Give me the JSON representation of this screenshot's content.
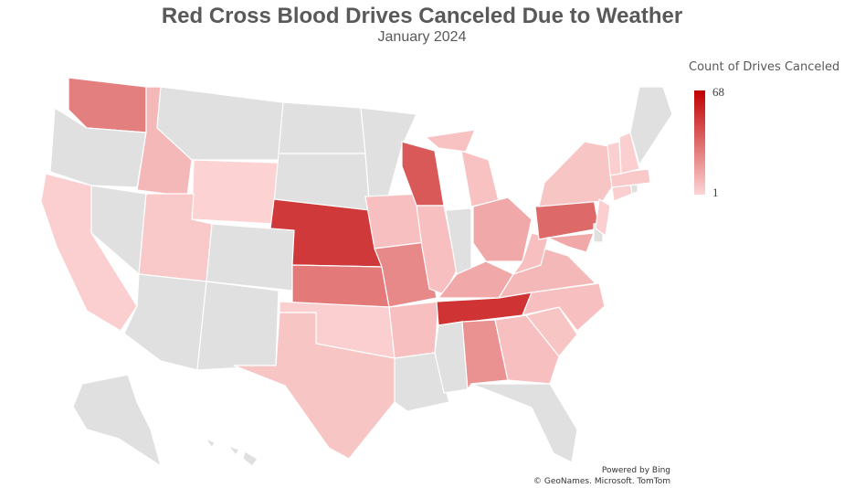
{
  "title": "Red Cross Blood Drives Canceled Due to Weather",
  "subtitle": "January 2024",
  "legend": {
    "title": "Count of Drives Canceled",
    "max": "68",
    "min": "1",
    "max_value": 68,
    "min_value": 1,
    "color_max": "#c00000",
    "color_min": "#fdd5d5",
    "no_data_color": "#e0e0e0"
  },
  "attribution": {
    "line1": "Powered by Bing",
    "line2": "© GeoNames. Microsoft. TomTom"
  },
  "chart_data": {
    "type": "choropleth",
    "title": "Red Cross Blood Drives Canceled Due to Weather",
    "subtitle": "January 2024",
    "measure": "Count of Drives Canceled",
    "range": [
      1,
      68
    ],
    "states": [
      {
        "state": "WA",
        "value": 28
      },
      {
        "state": "OR",
        "value": null
      },
      {
        "state": "CA",
        "value": 3
      },
      {
        "state": "NV",
        "value": null
      },
      {
        "state": "ID",
        "value": 10
      },
      {
        "state": "MT",
        "value": null
      },
      {
        "state": "WY",
        "value": 2
      },
      {
        "state": "UT",
        "value": 5
      },
      {
        "state": "CO",
        "value": null
      },
      {
        "state": "AZ",
        "value": null
      },
      {
        "state": "NM",
        "value": null
      },
      {
        "state": "ND",
        "value": null
      },
      {
        "state": "SD",
        "value": null
      },
      {
        "state": "NE",
        "value": 50
      },
      {
        "state": "KS",
        "value": 30
      },
      {
        "state": "OK",
        "value": 3
      },
      {
        "state": "TX",
        "value": 6
      },
      {
        "state": "MN",
        "value": null
      },
      {
        "state": "IA",
        "value": 8
      },
      {
        "state": "MO",
        "value": 25
      },
      {
        "state": "AR",
        "value": 8
      },
      {
        "state": "LA",
        "value": null
      },
      {
        "state": "WI",
        "value": 40
      },
      {
        "state": "IL",
        "value": 8
      },
      {
        "state": "MI",
        "value": 7
      },
      {
        "state": "IN",
        "value": null
      },
      {
        "state": "OH",
        "value": 15
      },
      {
        "state": "KY",
        "value": 15
      },
      {
        "state": "TN",
        "value": 52
      },
      {
        "state": "MS",
        "value": null
      },
      {
        "state": "AL",
        "value": 22
      },
      {
        "state": "GA",
        "value": 8
      },
      {
        "state": "FL",
        "value": null
      },
      {
        "state": "SC",
        "value": 6
      },
      {
        "state": "NC",
        "value": 8
      },
      {
        "state": "VA",
        "value": 10
      },
      {
        "state": "WV",
        "value": 8
      },
      {
        "state": "PA",
        "value": 35
      },
      {
        "state": "NY",
        "value": 6
      },
      {
        "state": "MD",
        "value": 15
      },
      {
        "state": "DE",
        "value": null
      },
      {
        "state": "NJ",
        "value": 3
      },
      {
        "state": "CT",
        "value": 3
      },
      {
        "state": "RI",
        "value": null
      },
      {
        "state": "MA",
        "value": 5
      },
      {
        "state": "VT",
        "value": 3
      },
      {
        "state": "NH",
        "value": 3
      },
      {
        "state": "ME",
        "value": null
      },
      {
        "state": "AK",
        "value": null
      },
      {
        "state": "HI",
        "value": null
      }
    ]
  }
}
